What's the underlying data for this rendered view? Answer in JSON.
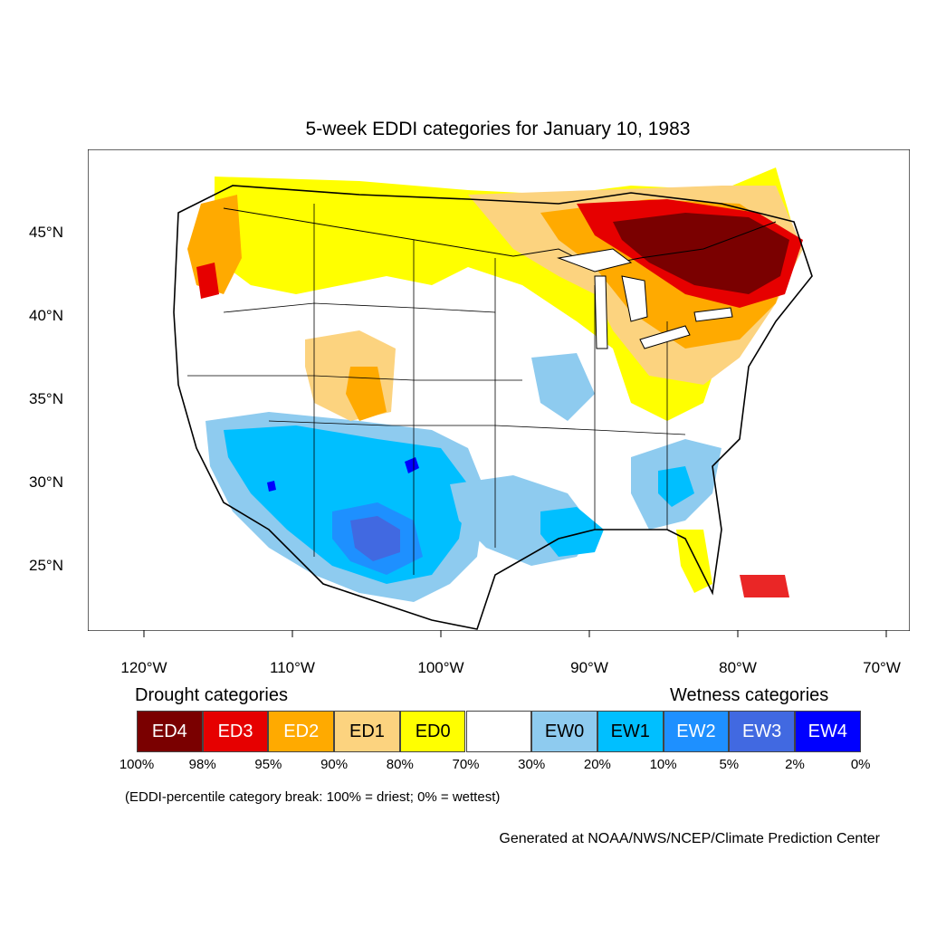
{
  "title": "5-week EDDI categories for January 10, 1983",
  "lat_labels": [
    "45°N",
    "40°N",
    "35°N",
    "30°N",
    "25°N"
  ],
  "lon_labels": [
    "120°W",
    "110°W",
    "100°W",
    "90°W",
    "80°W",
    "70°W"
  ],
  "drought_heading": "Drought categories",
  "wetness_heading": "Wetness categories",
  "legend": [
    {
      "label": "ED4",
      "color": "#7a0000",
      "text_color": "#ffffff"
    },
    {
      "label": "ED3",
      "color": "#e60000",
      "text_color": "#ffffff"
    },
    {
      "label": "ED2",
      "color": "#ffaa00",
      "text_color": "#ffffff"
    },
    {
      "label": "ED1",
      "color": "#fcd37f",
      "text_color": "#000000"
    },
    {
      "label": "ED0",
      "color": "#ffff00",
      "text_color": "#000000"
    },
    {
      "label": "",
      "color": "#ffffff",
      "text_color": "#000000"
    },
    {
      "label": "EW0",
      "color": "#8ecbef",
      "text_color": "#000000"
    },
    {
      "label": "EW1",
      "color": "#00bfff",
      "text_color": "#000000"
    },
    {
      "label": "EW2",
      "color": "#1e90ff",
      "text_color": "#ffffff"
    },
    {
      "label": "EW3",
      "color": "#4169e1",
      "text_color": "#ffffff"
    },
    {
      "label": "EW4",
      "color": "#0000ff",
      "text_color": "#ffffff"
    }
  ],
  "percent_breaks": [
    "100%",
    "98%",
    "95%",
    "90%",
    "80%",
    "70%",
    "30%",
    "20%",
    "10%",
    "5%",
    "2%",
    "0%"
  ],
  "note": "(EDDI-percentile category break: 100% = driest; 0% = wettest)",
  "credit": "Generated at NOAA/NWS/NCEP/Climate Prediction Center"
}
